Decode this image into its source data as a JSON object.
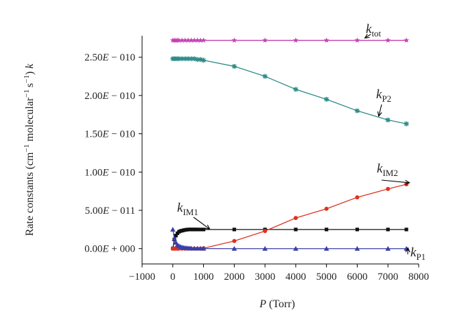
{
  "chart_data": {
    "type": "line",
    "xlabel_italic": "P",
    "xlabel_rest": " (Torr)",
    "ylabel": {
      "a": "Rate constants (cm",
      "b": "−1",
      "c": " molecular",
      "d": "−1",
      "e": "s",
      "f": "−1",
      "g": ") ",
      "h": "k"
    },
    "xlim": [
      -1000,
      8000
    ],
    "ylim": [
      -2e-11,
      2.78e-10
    ],
    "x_ticks": [
      -1000,
      0,
      1000,
      2000,
      3000,
      4000,
      5000,
      6000,
      7000,
      8000
    ],
    "x_tick_labels": [
      "−1000",
      "0",
      "1000",
      "2000",
      "3000",
      "4000",
      "5000",
      "6000",
      "7000",
      "8000"
    ],
    "y_ticks": [
      0,
      5e-11,
      1e-10,
      1.5e-10,
      2e-10,
      2.5e-10
    ],
    "y_tick_labels": [
      {
        "m": "0.00",
        "e": "E",
        "s": " + 000"
      },
      {
        "m": "5.00",
        "e": "E",
        "s": " − 011"
      },
      {
        "m": "1.00",
        "e": "E",
        "s": " − 010"
      },
      {
        "m": "1.50",
        "e": "E",
        "s": " − 010"
      },
      {
        "m": "2.00",
        "e": "E",
        "s": " − 010"
      },
      {
        "m": "2.50",
        "e": "E",
        "s": " − 010"
      }
    ],
    "series": [
      {
        "color": "#c43fb5",
        "marker": "star",
        "x": [
          0,
          50,
          100,
          150,
          200,
          300,
          400,
          500,
          600,
          700,
          800,
          900,
          1000,
          2000,
          3000,
          4000,
          5000,
          6000,
          7000,
          7600
        ],
        "y": [
          2.72e-10,
          2.72e-10,
          2.72e-10,
          2.72e-10,
          2.72e-10,
          2.72e-10,
          2.72e-10,
          2.72e-10,
          2.72e-10,
          2.72e-10,
          2.72e-10,
          2.72e-10,
          2.72e-10,
          2.72e-10,
          2.72e-10,
          2.72e-10,
          2.72e-10,
          2.72e-10,
          2.72e-10,
          2.72e-10
        ]
      },
      {
        "color": "#2e8b87",
        "marker": "asterisk",
        "x": [
          0,
          50,
          100,
          150,
          200,
          300,
          400,
          500,
          600,
          700,
          800,
          900,
          1000,
          2000,
          3000,
          4000,
          5000,
          6000,
          7000,
          7600
        ],
        "y": [
          2.48e-10,
          2.48e-10,
          2.48e-10,
          2.48e-10,
          2.48e-10,
          2.48e-10,
          2.48e-10,
          2.48e-10,
          2.48e-10,
          2.48e-10,
          2.47e-10,
          2.47e-10,
          2.46e-10,
          2.38e-10,
          2.25e-10,
          2.08e-10,
          1.95e-10,
          1.8e-10,
          1.68e-10,
          1.63e-10
        ]
      },
      {
        "color": "#111111",
        "marker": "square",
        "x": [
          0,
          50,
          100,
          150,
          200,
          250,
          300,
          350,
          400,
          450,
          500,
          550,
          600,
          650,
          700,
          750,
          800,
          900,
          1000,
          2000,
          3000,
          4000,
          5000,
          6000,
          7000,
          7600
        ],
        "y": [
          3e-13,
          1.2e-11,
          1.7e-11,
          2e-11,
          2.2e-11,
          2.3e-11,
          2.35e-11,
          2.4e-11,
          2.45e-11,
          2.47e-11,
          2.5e-11,
          2.5e-11,
          2.5e-11,
          2.5e-11,
          2.5e-11,
          2.5e-11,
          2.5e-11,
          2.5e-11,
          2.5e-11,
          2.5e-11,
          2.5e-11,
          2.5e-11,
          2.5e-11,
          2.5e-11,
          2.5e-11,
          2.5e-11
        ]
      },
      {
        "color": "#e0321f",
        "marker": "circle",
        "x": [
          0,
          50,
          100,
          150,
          200,
          300,
          400,
          500,
          600,
          700,
          800,
          900,
          1000,
          2000,
          3000,
          4000,
          5000,
          6000,
          7000,
          7600
        ],
        "y": [
          0,
          0,
          0,
          0,
          0,
          0,
          0,
          0,
          0,
          0,
          0,
          0,
          5e-13,
          1e-11,
          2.3e-11,
          4e-11,
          5.2e-11,
          6.7e-11,
          7.8e-11,
          8.4e-11
        ]
      },
      {
        "color": "#3b3fa8",
        "marker": "triangle",
        "x": [
          0,
          50,
          100,
          150,
          200,
          250,
          300,
          350,
          400,
          450,
          500,
          550,
          600,
          700,
          800,
          900,
          1000,
          2000,
          3000,
          4000,
          5000,
          6000,
          7000,
          7600
        ],
        "y": [
          2.5e-11,
          1.3e-11,
          8e-12,
          5e-12,
          3.5e-12,
          2.5e-12,
          1.8e-12,
          1.4e-12,
          1e-12,
          8e-13,
          6e-13,
          5e-13,
          4e-13,
          3e-13,
          2e-13,
          2e-13,
          1e-13,
          0,
          0,
          0,
          0,
          0,
          0,
          0
        ]
      }
    ],
    "annotations": [
      {
        "k": "k",
        "sub": "tot",
        "point": [
          6250,
          2.75e-10
        ]
      },
      {
        "k": "k",
        "sub": "P2",
        "point": [
          6700,
          1.73e-10
        ]
      },
      {
        "k": "k",
        "sub": "IM2",
        "point": [
          7700,
          8.6e-11
        ]
      },
      {
        "k": "k",
        "sub": "IM1",
        "point": [
          1200,
          2.55e-11
        ]
      },
      {
        "k": "k",
        "sub": "P1",
        "point": [
          7650,
          1e-12
        ]
      }
    ]
  }
}
